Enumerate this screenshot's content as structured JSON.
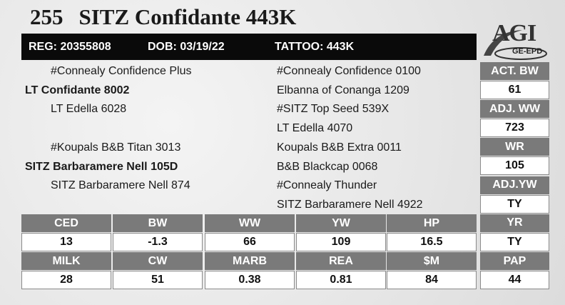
{
  "header": {
    "lot": "255",
    "name": "SITZ Confidante 443K"
  },
  "info": {
    "reg": "REG: 20355808",
    "dob": "DOB: 03/19/22",
    "tattoo": "TATTOO: 443K"
  },
  "logo": {
    "brand": "AGI",
    "tagline": "GE-EPD"
  },
  "pedigree": {
    "left": [
      "#Connealy Confidence Plus",
      "LT Confidante 8002",
      "LT Edella 6028",
      "#Koupals B&B Titan 3013",
      "SITZ Barbaramere Nell 105D",
      "SITZ Barbaramere Nell 874"
    ],
    "right": [
      "#Connealy Confidence 0100",
      "Elbanna of Conanga 1209",
      "#SITZ Top Seed 539X",
      "LT Edella 4070",
      "Koupals B&B Extra 0011",
      "B&B Blackcap 0068",
      "#Connealy Thunder",
      "SITZ Barbaramere Nell 4922"
    ]
  },
  "epd": {
    "rows": [
      {
        "headers": [
          "CED",
          "BW",
          "WW",
          "YW",
          "HP"
        ],
        "values": [
          13,
          -1.3,
          66,
          109,
          16.5
        ]
      },
      {
        "headers": [
          "MILK",
          "CW",
          "MARB",
          "REA",
          "$M"
        ],
        "values": [
          28,
          51,
          0.38,
          0.81,
          84
        ]
      }
    ]
  },
  "side": [
    {
      "label": "ACT. BW",
      "value": 61
    },
    {
      "label": "ADJ. WW",
      "value": 723
    },
    {
      "label": "WR",
      "value": 105
    },
    {
      "label": "ADJ.YW",
      "value": "TY"
    },
    {
      "label": "YR",
      "value": "TY"
    },
    {
      "label": "PAP",
      "value": 44
    }
  ]
}
